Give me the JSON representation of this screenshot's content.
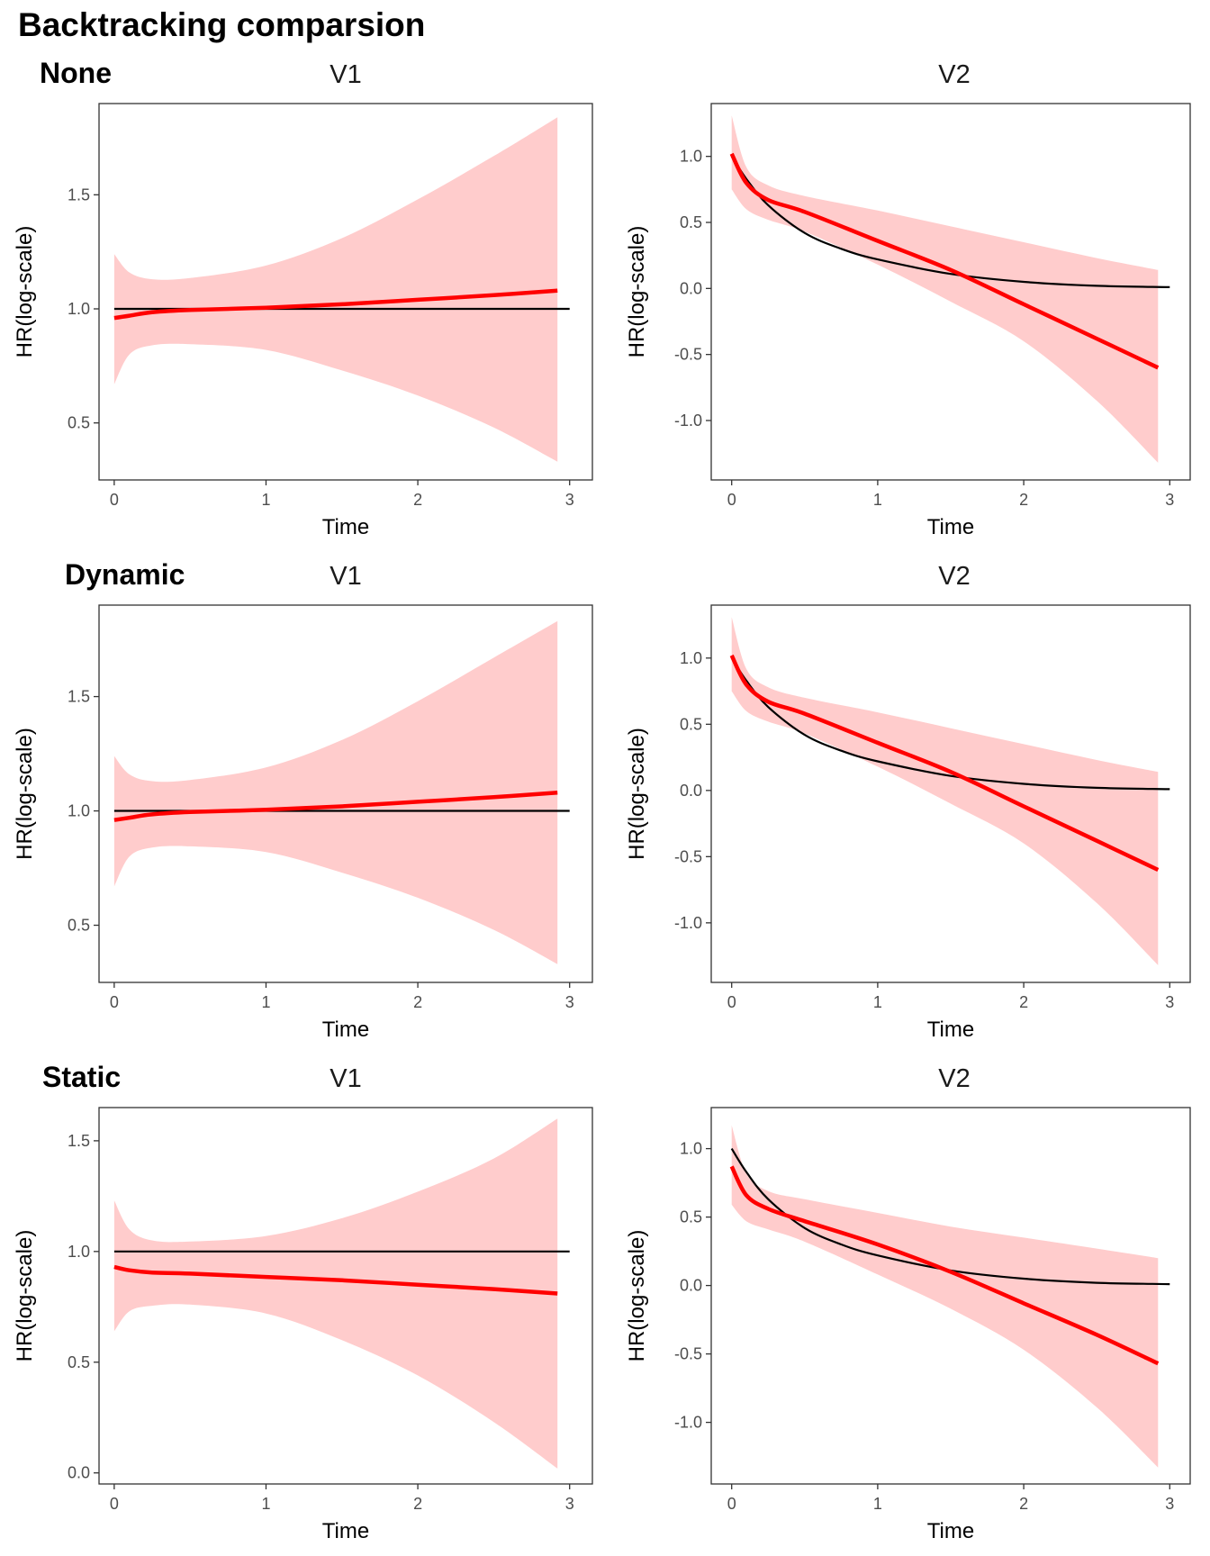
{
  "title": "Backtracking comparsion",
  "colors": {
    "band": "#ffcccc",
    "estimate": "#ff0000",
    "truth": "#000000",
    "axis": "#333333"
  },
  "chart_data": [
    {
      "type": "line",
      "row": "None",
      "panel": "V1",
      "xlabel": "Time",
      "ylabel": "HR(log-scale)",
      "xlim": [
        -0.1,
        3.15
      ],
      "ylim": [
        0.25,
        1.9
      ],
      "xticks": [
        0,
        1,
        2,
        3
      ],
      "yticks": [
        0.5,
        1.0,
        1.5
      ],
      "x": [
        0,
        0.1,
        0.25,
        0.5,
        1.0,
        1.5,
        2.0,
        2.5,
        2.92
      ],
      "estimate": [
        0.96,
        0.97,
        0.985,
        0.995,
        1.005,
        1.02,
        1.04,
        1.06,
        1.08
      ],
      "lower": [
        0.67,
        0.8,
        0.84,
        0.845,
        0.82,
        0.73,
        0.62,
        0.48,
        0.33
      ],
      "upper": [
        1.24,
        1.16,
        1.13,
        1.135,
        1.19,
        1.31,
        1.48,
        1.67,
        1.84
      ],
      "truth": {
        "x": [
          0,
          3
        ],
        "y": [
          1.0,
          1.0
        ]
      }
    },
    {
      "type": "line",
      "row": "None",
      "panel": "V2",
      "xlabel": "Time",
      "ylabel": "HR(log-scale)",
      "xlim": [
        -0.14,
        3.14
      ],
      "ylim": [
        -1.45,
        1.4
      ],
      "xticks": [
        0,
        1,
        2,
        3
      ],
      "yticks": [
        -1.0,
        -0.5,
        0.0,
        0.5,
        1.0
      ],
      "x": [
        0,
        0.1,
        0.25,
        0.5,
        1.0,
        1.5,
        2.0,
        2.5,
        2.92
      ],
      "estimate": [
        1.02,
        0.8,
        0.67,
        0.58,
        0.36,
        0.14,
        -0.12,
        -0.38,
        -0.6
      ],
      "lower": [
        0.75,
        0.6,
        0.52,
        0.43,
        0.18,
        -0.1,
        -0.4,
        -0.85,
        -1.32
      ],
      "upper": [
        1.31,
        0.92,
        0.78,
        0.7,
        0.59,
        0.47,
        0.35,
        0.23,
        0.14
      ],
      "truth": {
        "x": [
          0,
          0.1,
          0.25,
          0.5,
          0.75,
          1.0,
          1.5,
          2.0,
          2.5,
          3.0
        ],
        "y": [
          1.0,
          0.83,
          0.63,
          0.42,
          0.3,
          0.22,
          0.11,
          0.05,
          0.02,
          0.01
        ]
      }
    },
    {
      "type": "line",
      "row": "Dynamic",
      "panel": "V1",
      "xlabel": "Time",
      "ylabel": "HR(log-scale)",
      "xlim": [
        -0.1,
        3.15
      ],
      "ylim": [
        0.25,
        1.9
      ],
      "xticks": [
        0,
        1,
        2,
        3
      ],
      "yticks": [
        0.5,
        1.0,
        1.5
      ],
      "x": [
        0,
        0.1,
        0.25,
        0.5,
        1.0,
        1.5,
        2.0,
        2.5,
        2.92
      ],
      "estimate": [
        0.96,
        0.97,
        0.985,
        0.995,
        1.005,
        1.02,
        1.04,
        1.06,
        1.08
      ],
      "lower": [
        0.67,
        0.8,
        0.84,
        0.845,
        0.82,
        0.73,
        0.62,
        0.48,
        0.33
      ],
      "upper": [
        1.24,
        1.16,
        1.13,
        1.135,
        1.19,
        1.31,
        1.48,
        1.67,
        1.83
      ],
      "truth": {
        "x": [
          0,
          3
        ],
        "y": [
          1.0,
          1.0
        ]
      }
    },
    {
      "type": "line",
      "row": "Dynamic",
      "panel": "V2",
      "xlabel": "Time",
      "ylabel": "HR(log-scale)",
      "xlim": [
        -0.14,
        3.14
      ],
      "ylim": [
        -1.45,
        1.4
      ],
      "xticks": [
        0,
        1,
        2,
        3
      ],
      "yticks": [
        -1.0,
        -0.5,
        0.0,
        0.5,
        1.0
      ],
      "x": [
        0,
        0.1,
        0.25,
        0.5,
        1.0,
        1.5,
        2.0,
        2.5,
        2.92
      ],
      "estimate": [
        1.02,
        0.8,
        0.67,
        0.58,
        0.36,
        0.14,
        -0.12,
        -0.38,
        -0.6
      ],
      "lower": [
        0.75,
        0.6,
        0.52,
        0.43,
        0.18,
        -0.1,
        -0.4,
        -0.85,
        -1.32
      ],
      "upper": [
        1.31,
        0.92,
        0.78,
        0.7,
        0.59,
        0.47,
        0.35,
        0.23,
        0.14
      ],
      "truth": {
        "x": [
          0,
          0.1,
          0.25,
          0.5,
          0.75,
          1.0,
          1.5,
          2.0,
          2.5,
          3.0
        ],
        "y": [
          1.0,
          0.83,
          0.63,
          0.42,
          0.3,
          0.22,
          0.11,
          0.05,
          0.02,
          0.01
        ]
      }
    },
    {
      "type": "line",
      "row": "Static",
      "panel": "V1",
      "xlabel": "Time",
      "ylabel": "HR(log-scale)",
      "xlim": [
        -0.1,
        3.15
      ],
      "ylim": [
        -0.05,
        1.65
      ],
      "xticks": [
        0,
        1,
        2,
        3
      ],
      "yticks": [
        0.0,
        0.5,
        1.0,
        1.5
      ],
      "x": [
        0,
        0.1,
        0.25,
        0.5,
        1.0,
        1.5,
        2.0,
        2.5,
        2.92
      ],
      "estimate": [
        0.93,
        0.915,
        0.905,
        0.9,
        0.885,
        0.87,
        0.85,
        0.83,
        0.81
      ],
      "lower": [
        0.64,
        0.73,
        0.755,
        0.76,
        0.72,
        0.6,
        0.44,
        0.23,
        0.02
      ],
      "upper": [
        1.23,
        1.1,
        1.05,
        1.045,
        1.07,
        1.15,
        1.27,
        1.42,
        1.6
      ],
      "truth": {
        "x": [
          0,
          3
        ],
        "y": [
          1.0,
          1.0
        ]
      }
    },
    {
      "type": "line",
      "row": "Static",
      "panel": "V2",
      "xlabel": "Time",
      "ylabel": "HR(log-scale)",
      "xlim": [
        -0.14,
        3.14
      ],
      "ylim": [
        -1.45,
        1.3
      ],
      "xticks": [
        0,
        1,
        2,
        3
      ],
      "yticks": [
        -1.0,
        -0.5,
        0.0,
        0.5,
        1.0
      ],
      "x": [
        0,
        0.1,
        0.25,
        0.5,
        1.0,
        1.5,
        2.0,
        2.5,
        2.92
      ],
      "estimate": [
        0.87,
        0.66,
        0.56,
        0.47,
        0.3,
        0.1,
        -0.13,
        -0.36,
        -0.57
      ],
      "lower": [
        0.59,
        0.47,
        0.41,
        0.32,
        0.08,
        -0.17,
        -0.47,
        -0.89,
        -1.33
      ],
      "upper": [
        1.17,
        0.82,
        0.69,
        0.63,
        0.53,
        0.43,
        0.35,
        0.27,
        0.2
      ],
      "truth": {
        "x": [
          0,
          0.1,
          0.25,
          0.5,
          0.75,
          1.0,
          1.5,
          2.0,
          2.5,
          3.0
        ],
        "y": [
          1.0,
          0.83,
          0.63,
          0.42,
          0.3,
          0.22,
          0.11,
          0.05,
          0.02,
          0.01
        ]
      }
    }
  ]
}
